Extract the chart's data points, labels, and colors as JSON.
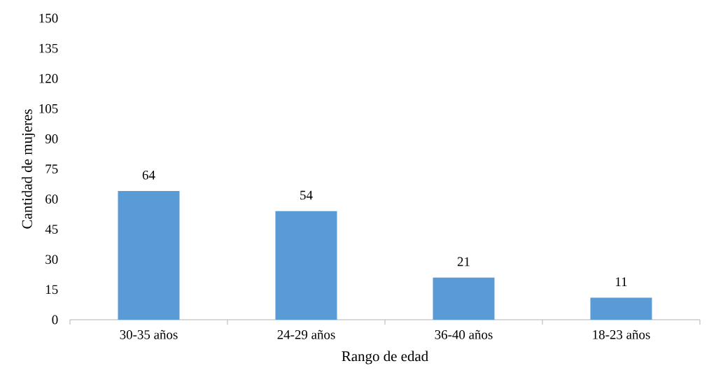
{
  "chart_data": {
    "type": "bar",
    "xlabel": "Rango de edad",
    "ylabel": "Cantidad de mujeres",
    "categories": [
      "30-35 años",
      "24-29 años",
      "36-40 años",
      "18-23 años"
    ],
    "values": [
      64,
      54,
      21,
      11
    ],
    "color": "#5b9bd5",
    "data_labels": true,
    "grid": false,
    "ylim": [
      0,
      150
    ],
    "yticks": [
      0,
      15,
      30,
      45,
      60,
      75,
      90,
      105,
      120,
      135,
      150
    ]
  }
}
